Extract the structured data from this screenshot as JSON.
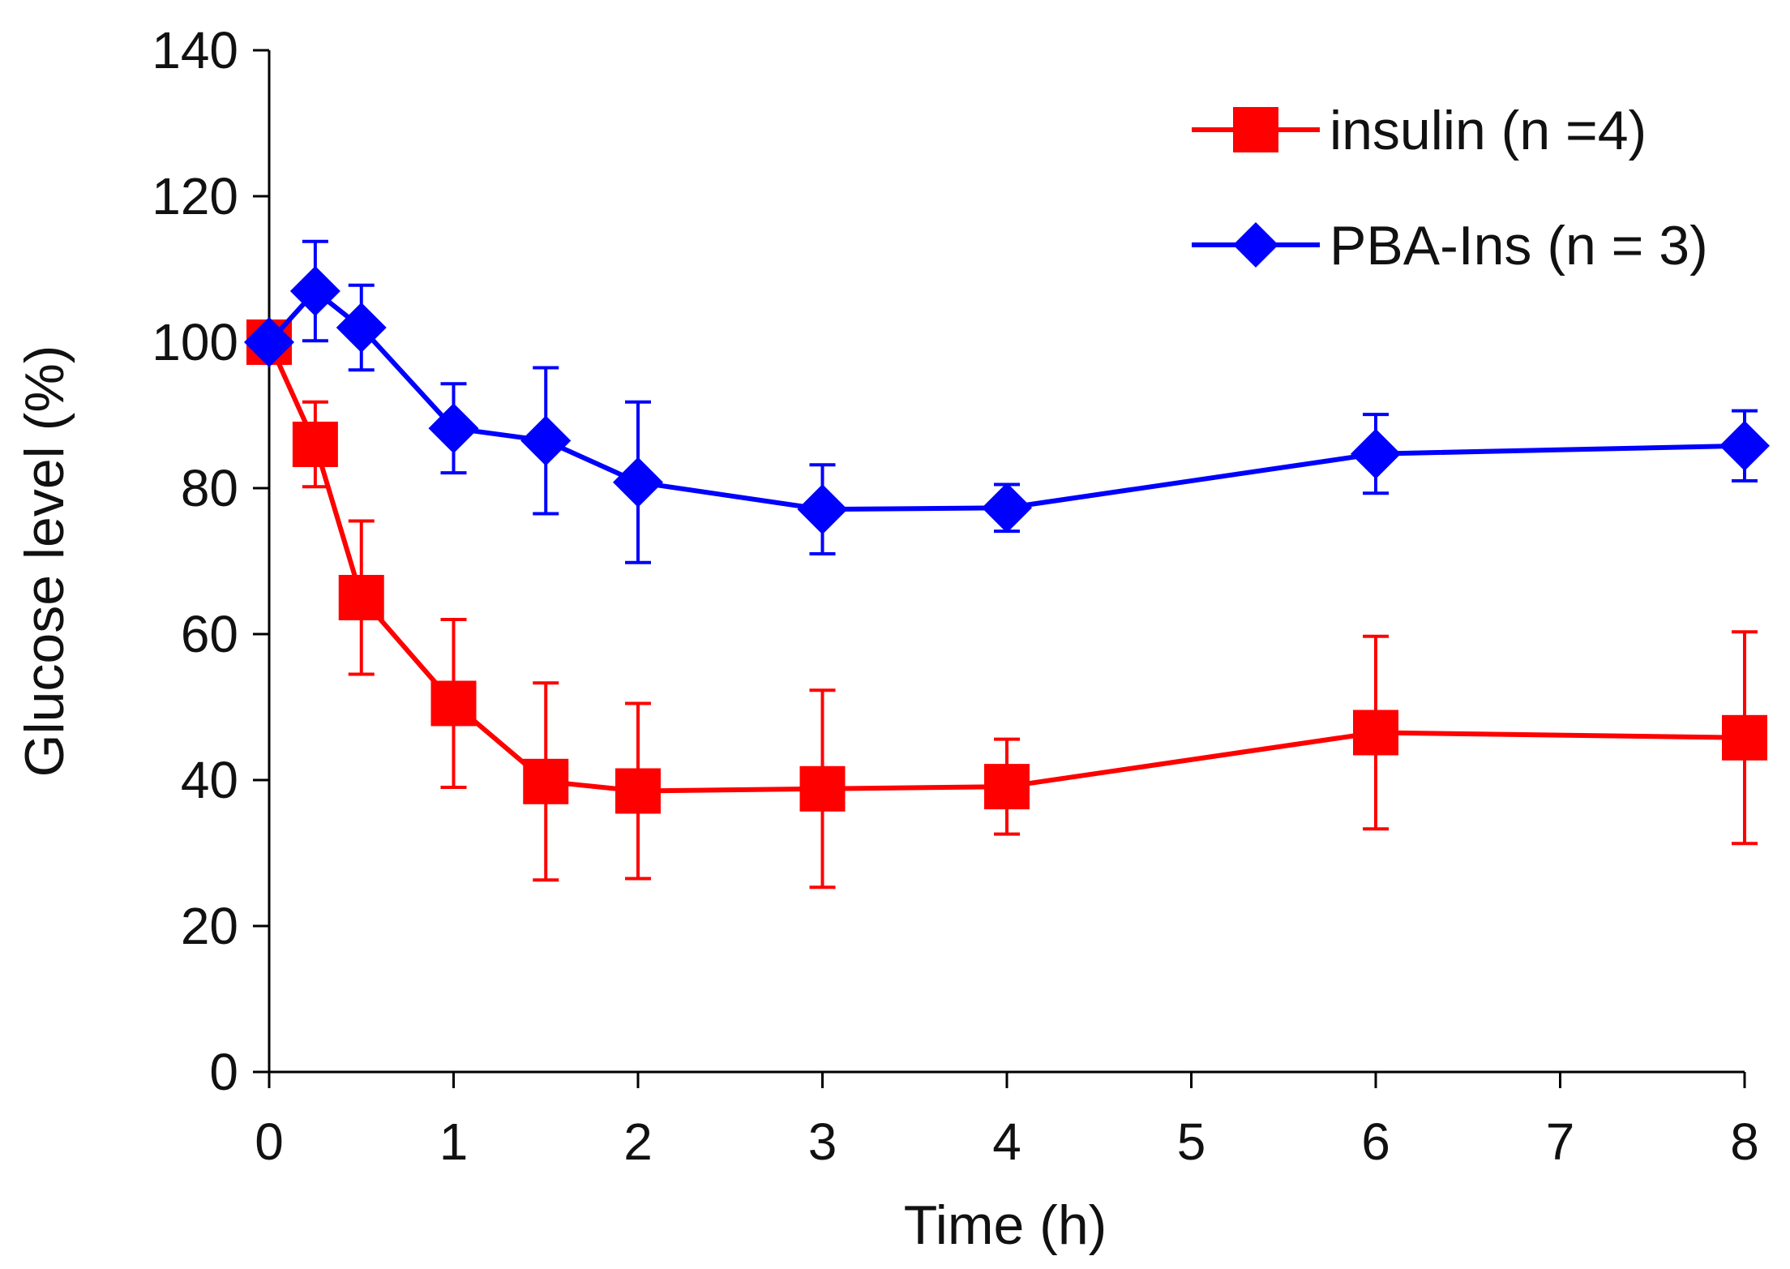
{
  "chart_data": {
    "type": "line",
    "title": "",
    "xlabel": "Time (h)",
    "ylabel": "Glucose level (%)",
    "xlim": [
      0,
      8
    ],
    "ylim": [
      0,
      140
    ],
    "xticks": [
      0,
      1,
      2,
      3,
      4,
      5,
      6,
      7,
      8
    ],
    "yticks": [
      0,
      20,
      40,
      60,
      80,
      100,
      120,
      140
    ],
    "grid": false,
    "legend_position": "top-right",
    "series": [
      {
        "name": "insulin (n =4)",
        "color": "#ff0000",
        "marker": "square",
        "x": [
          0,
          0.25,
          0.5,
          1,
          1.5,
          2,
          3,
          4,
          6,
          8
        ],
        "y": [
          100,
          86,
          65,
          50.5,
          39.8,
          38.5,
          38.8,
          39.1,
          46.5,
          45.8
        ],
        "error": [
          0,
          5.8,
          10.5,
          11.5,
          13.5,
          12,
          13.5,
          6.5,
          13.2,
          14.5
        ]
      },
      {
        "name": "PBA-Ins (n = 3)",
        "color": "#0000ff",
        "marker": "diamond",
        "x": [
          0,
          0.25,
          0.5,
          1,
          1.5,
          2,
          3,
          4,
          6,
          8
        ],
        "y": [
          100,
          107,
          102,
          88.2,
          86.5,
          80.8,
          77.1,
          77.3,
          84.7,
          85.8
        ],
        "error": [
          0,
          6.8,
          5.8,
          6.1,
          10,
          11,
          6.1,
          3.2,
          5.4,
          4.8
        ]
      }
    ]
  }
}
